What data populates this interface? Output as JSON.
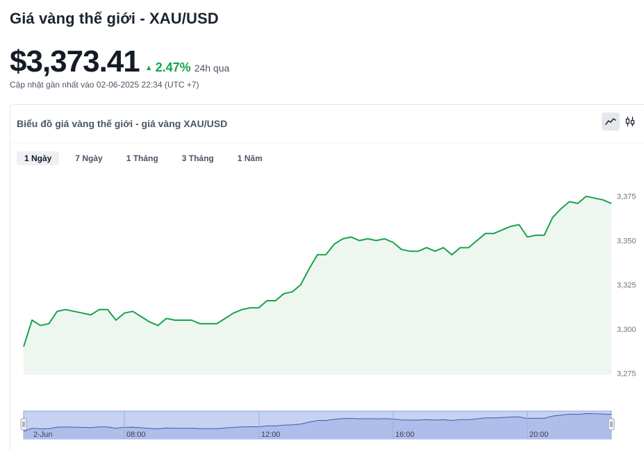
{
  "header": {
    "title": "Giá vàng thế giới - XAU/USD",
    "price": "$3,373.41",
    "change": "2.47%",
    "change_period": "24h qua",
    "updated": "Cập nhật gần nhất vào 02-06-2025 22:34 (UTC +7)"
  },
  "card": {
    "title": "Biểu đồ giá vàng thế giới - giá vàng XAU/USD",
    "chart_modes": [
      {
        "icon": "line-chart-icon",
        "active": true
      },
      {
        "icon": "candlestick-icon",
        "active": false
      }
    ]
  },
  "tabs": [
    {
      "label": "1 Ngày",
      "active": true
    },
    {
      "label": "7 Ngày",
      "active": false
    },
    {
      "label": "1 Tháng",
      "active": false
    },
    {
      "label": "3 Tháng",
      "active": false
    },
    {
      "label": "1 Năm",
      "active": false
    }
  ],
  "colors": {
    "line": "#16a34a",
    "area": "#eef6f0",
    "accent_up": "#16a34a",
    "navigator_fill": "#c7d2f3"
  },
  "chart_data": {
    "type": "area",
    "title": "",
    "xlabel": "",
    "ylabel": "",
    "ylim": [
      3274,
      3380
    ],
    "y_ticks": [
      "3,375",
      "3,350",
      "3,325",
      "3,300",
      "3,275"
    ],
    "y_tick_values": [
      3375,
      3350,
      3325,
      3300,
      3275
    ],
    "series": [
      {
        "values": [
          3290,
          3305,
          3302,
          3303,
          3310,
          3311,
          3310,
          3309,
          3308,
          3311,
          3311,
          3305,
          3309,
          3310,
          3307,
          3304,
          3302,
          3306,
          3305,
          3305,
          3305,
          3303,
          3303,
          3303,
          3306,
          3309,
          3311,
          3312,
          3312,
          3316,
          3316,
          3320,
          3321,
          3325,
          3334,
          3342,
          3342,
          3348,
          3351,
          3352,
          3350,
          3351,
          3350,
          3351,
          3349,
          3345,
          3344,
          3344,
          3346,
          3344,
          3346,
          3342,
          3346,
          3346,
          3350,
          3354,
          3354,
          3356,
          3358,
          3359,
          3352,
          3353,
          3353,
          3363,
          3368,
          3372,
          3371,
          3375,
          3374,
          3373,
          3371
        ]
      }
    ],
    "navigator_labels": [
      "2-Jun",
      "08:00",
      "12:00",
      "16:00",
      "20:00"
    ]
  }
}
